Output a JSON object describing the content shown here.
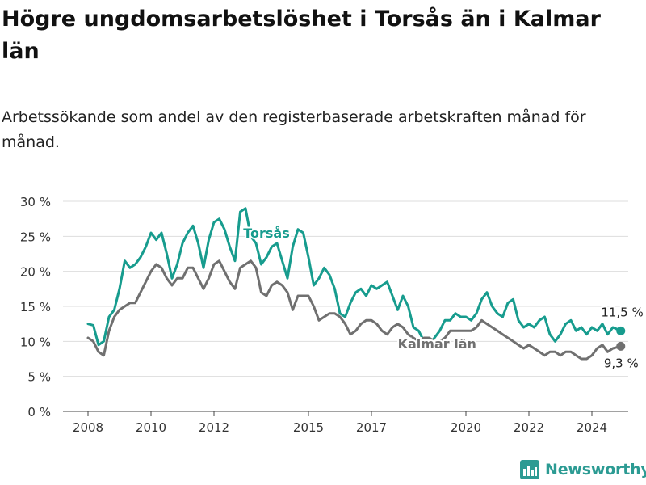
{
  "title": "Högre ungdomsarbetslöshet i Torsås än i Kalmar län",
  "subtitle": "Arbetssökande som andel av den registerbaserade arbetskraften månad för månad.",
  "logo": {
    "text": "Newsworthy",
    "icon": "bar-chart-logo-icon"
  },
  "colors": {
    "torsas": "#179c8e",
    "kalmar": "#707070",
    "grid": "#dddddd",
    "text": "#222222"
  },
  "chart_data": {
    "type": "line",
    "title": "Högre ungdomsarbetslöshet i Torsås än i Kalmar län",
    "subtitle": "Arbetssökande som andel av den registerbaserade arbetskraften månad för månad.",
    "xlabel": "",
    "ylabel": "",
    "xlim": [
      "2008-01",
      "2025-01"
    ],
    "ylim": [
      0,
      30
    ],
    "x_ticks": [
      "2008",
      "2010",
      "2012",
      "2015",
      "2017",
      "2020",
      "2022",
      "2024"
    ],
    "x_tick_positions": [
      "2008-01",
      "2010-01",
      "2012-01",
      "2015-01",
      "2017-01",
      "2020-01",
      "2022-01",
      "2024-01"
    ],
    "y_ticks": [
      "0 %",
      "5 %",
      "10 %",
      "15 %",
      "20 %",
      "25 %",
      "30 %"
    ],
    "y_tick_values": [
      0,
      5,
      10,
      15,
      20,
      25,
      30
    ],
    "grid": true,
    "legend": "inline labels on the lines",
    "series": [
      {
        "name": "Torsås",
        "color": "#179c8e",
        "points": [
          [
            "2008-01",
            12.5
          ],
          [
            "2008-03",
            12.3
          ],
          [
            "2008-05",
            9.5
          ],
          [
            "2008-07",
            10.0
          ],
          [
            "2008-09",
            13.5
          ],
          [
            "2008-11",
            14.5
          ],
          [
            "2009-01",
            17.5
          ],
          [
            "2009-03",
            21.5
          ],
          [
            "2009-05",
            20.5
          ],
          [
            "2009-07",
            21.0
          ],
          [
            "2009-09",
            22.0
          ],
          [
            "2009-11",
            23.5
          ],
          [
            "2010-01",
            25.5
          ],
          [
            "2010-03",
            24.5
          ],
          [
            "2010-05",
            25.5
          ],
          [
            "2010-07",
            22.5
          ],
          [
            "2010-09",
            19.0
          ],
          [
            "2010-11",
            21.0
          ],
          [
            "2011-01",
            24.0
          ],
          [
            "2011-03",
            25.5
          ],
          [
            "2011-05",
            26.5
          ],
          [
            "2011-07",
            24.0
          ],
          [
            "2011-09",
            20.5
          ],
          [
            "2011-11",
            24.5
          ],
          [
            "2012-01",
            27.0
          ],
          [
            "2012-03",
            27.5
          ],
          [
            "2012-05",
            26.0
          ],
          [
            "2012-07",
            23.5
          ],
          [
            "2012-09",
            21.5
          ],
          [
            "2012-11",
            28.5
          ],
          [
            "2013-01",
            29.0
          ],
          [
            "2013-03",
            25.0
          ],
          [
            "2013-05",
            24.0
          ],
          [
            "2013-07",
            21.0
          ],
          [
            "2013-09",
            22.0
          ],
          [
            "2013-11",
            23.5
          ],
          [
            "2014-01",
            24.0
          ],
          [
            "2014-03",
            21.5
          ],
          [
            "2014-05",
            19.0
          ],
          [
            "2014-07",
            23.5
          ],
          [
            "2014-09",
            26.0
          ],
          [
            "2014-11",
            25.5
          ],
          [
            "2015-01",
            22.0
          ],
          [
            "2015-03",
            18.0
          ],
          [
            "2015-05",
            19.0
          ],
          [
            "2015-07",
            20.5
          ],
          [
            "2015-09",
            19.5
          ],
          [
            "2015-11",
            17.5
          ],
          [
            "2016-01",
            14.0
          ],
          [
            "2016-03",
            13.5
          ],
          [
            "2016-05",
            15.5
          ],
          [
            "2016-07",
            17.0
          ],
          [
            "2016-09",
            17.5
          ],
          [
            "2016-11",
            16.5
          ],
          [
            "2017-01",
            18.0
          ],
          [
            "2017-03",
            17.5
          ],
          [
            "2017-05",
            18.0
          ],
          [
            "2017-07",
            18.5
          ],
          [
            "2017-09",
            16.5
          ],
          [
            "2017-11",
            14.5
          ],
          [
            "2018-01",
            16.5
          ],
          [
            "2018-03",
            15.0
          ],
          [
            "2018-05",
            12.0
          ],
          [
            "2018-07",
            11.5
          ],
          [
            "2018-09",
            10.0
          ],
          [
            "2018-11",
            9.5
          ],
          [
            "2019-01",
            10.5
          ],
          [
            "2019-03",
            11.5
          ],
          [
            "2019-05",
            13.0
          ],
          [
            "2019-07",
            13.0
          ],
          [
            "2019-09",
            14.0
          ],
          [
            "2019-11",
            13.5
          ],
          [
            "2020-01",
            13.5
          ],
          [
            "2020-03",
            13.0
          ],
          [
            "2020-05",
            14.0
          ],
          [
            "2020-07",
            16.0
          ],
          [
            "2020-09",
            17.0
          ],
          [
            "2020-11",
            15.0
          ],
          [
            "2021-01",
            14.0
          ],
          [
            "2021-03",
            13.5
          ],
          [
            "2021-05",
            15.5
          ],
          [
            "2021-07",
            16.0
          ],
          [
            "2021-09",
            13.0
          ],
          [
            "2021-11",
            12.0
          ],
          [
            "2022-01",
            12.5
          ],
          [
            "2022-03",
            12.0
          ],
          [
            "2022-05",
            13.0
          ],
          [
            "2022-07",
            13.5
          ],
          [
            "2022-09",
            11.0
          ],
          [
            "2022-11",
            10.0
          ],
          [
            "2023-01",
            11.0
          ],
          [
            "2023-03",
            12.5
          ],
          [
            "2023-05",
            13.0
          ],
          [
            "2023-07",
            11.5
          ],
          [
            "2023-09",
            12.0
          ],
          [
            "2023-11",
            11.0
          ],
          [
            "2024-01",
            12.0
          ],
          [
            "2024-03",
            11.5
          ],
          [
            "2024-05",
            12.5
          ],
          [
            "2024-07",
            11.0
          ],
          [
            "2024-09",
            12.0
          ],
          [
            "2024-12",
            11.5
          ]
        ],
        "end_label": "11,5 %"
      },
      {
        "name": "Kalmar län",
        "color": "#707070",
        "points": [
          [
            "2008-01",
            10.5
          ],
          [
            "2008-03",
            10.0
          ],
          [
            "2008-05",
            8.5
          ],
          [
            "2008-07",
            8.0
          ],
          [
            "2008-09",
            11.5
          ],
          [
            "2008-11",
            13.5
          ],
          [
            "2009-01",
            14.5
          ],
          [
            "2009-03",
            15.0
          ],
          [
            "2009-05",
            15.5
          ],
          [
            "2009-07",
            15.5
          ],
          [
            "2009-09",
            17.0
          ],
          [
            "2009-11",
            18.5
          ],
          [
            "2010-01",
            20.0
          ],
          [
            "2010-03",
            21.0
          ],
          [
            "2010-05",
            20.5
          ],
          [
            "2010-07",
            19.0
          ],
          [
            "2010-09",
            18.0
          ],
          [
            "2010-11",
            19.0
          ],
          [
            "2011-01",
            19.0
          ],
          [
            "2011-03",
            20.5
          ],
          [
            "2011-05",
            20.5
          ],
          [
            "2011-07",
            19.0
          ],
          [
            "2011-09",
            17.5
          ],
          [
            "2011-11",
            19.0
          ],
          [
            "2012-01",
            21.0
          ],
          [
            "2012-03",
            21.5
          ],
          [
            "2012-05",
            20.0
          ],
          [
            "2012-07",
            18.5
          ],
          [
            "2012-09",
            17.5
          ],
          [
            "2012-11",
            20.5
          ],
          [
            "2013-01",
            21.0
          ],
          [
            "2013-03",
            21.5
          ],
          [
            "2013-05",
            20.5
          ],
          [
            "2013-07",
            17.0
          ],
          [
            "2013-09",
            16.5
          ],
          [
            "2013-11",
            18.0
          ],
          [
            "2014-01",
            18.5
          ],
          [
            "2014-03",
            18.0
          ],
          [
            "2014-05",
            17.0
          ],
          [
            "2014-07",
            14.5
          ],
          [
            "2014-09",
            16.5
          ],
          [
            "2014-11",
            16.5
          ],
          [
            "2015-01",
            16.5
          ],
          [
            "2015-03",
            15.0
          ],
          [
            "2015-05",
            13.0
          ],
          [
            "2015-07",
            13.5
          ],
          [
            "2015-09",
            14.0
          ],
          [
            "2015-11",
            14.0
          ],
          [
            "2016-01",
            13.5
          ],
          [
            "2016-03",
            12.5
          ],
          [
            "2016-05",
            11.0
          ],
          [
            "2016-07",
            11.5
          ],
          [
            "2016-09",
            12.5
          ],
          [
            "2016-11",
            13.0
          ],
          [
            "2017-01",
            13.0
          ],
          [
            "2017-03",
            12.5
          ],
          [
            "2017-05",
            11.5
          ],
          [
            "2017-07",
            11.0
          ],
          [
            "2017-09",
            12.0
          ],
          [
            "2017-11",
            12.5
          ],
          [
            "2018-01",
            12.0
          ],
          [
            "2018-03",
            11.0
          ],
          [
            "2018-05",
            10.5
          ],
          [
            "2018-07",
            10.0
          ],
          [
            "2018-09",
            10.5
          ],
          [
            "2018-11",
            10.5
          ],
          [
            "2019-01",
            10.0
          ],
          [
            "2019-03",
            10.0
          ],
          [
            "2019-05",
            10.5
          ],
          [
            "2019-07",
            11.5
          ],
          [
            "2019-09",
            11.5
          ],
          [
            "2019-11",
            11.5
          ],
          [
            "2020-01",
            11.5
          ],
          [
            "2020-03",
            11.5
          ],
          [
            "2020-05",
            12.0
          ],
          [
            "2020-07",
            13.0
          ],
          [
            "2020-09",
            12.5
          ],
          [
            "2020-11",
            12.0
          ],
          [
            "2021-01",
            11.5
          ],
          [
            "2021-03",
            11.0
          ],
          [
            "2021-05",
            10.5
          ],
          [
            "2021-07",
            10.0
          ],
          [
            "2021-09",
            9.5
          ],
          [
            "2021-11",
            9.0
          ],
          [
            "2022-01",
            9.5
          ],
          [
            "2022-03",
            9.0
          ],
          [
            "2022-05",
            8.5
          ],
          [
            "2022-07",
            8.0
          ],
          [
            "2022-09",
            8.5
          ],
          [
            "2022-11",
            8.5
          ],
          [
            "2023-01",
            8.0
          ],
          [
            "2023-03",
            8.5
          ],
          [
            "2023-05",
            8.5
          ],
          [
            "2023-07",
            8.0
          ],
          [
            "2023-09",
            7.5
          ],
          [
            "2023-11",
            7.5
          ],
          [
            "2024-01",
            8.0
          ],
          [
            "2024-03",
            9.0
          ],
          [
            "2024-05",
            9.5
          ],
          [
            "2024-07",
            8.5
          ],
          [
            "2024-09",
            9.0
          ],
          [
            "2024-12",
            9.3
          ]
        ],
        "end_label": "9,3 %"
      }
    ]
  }
}
